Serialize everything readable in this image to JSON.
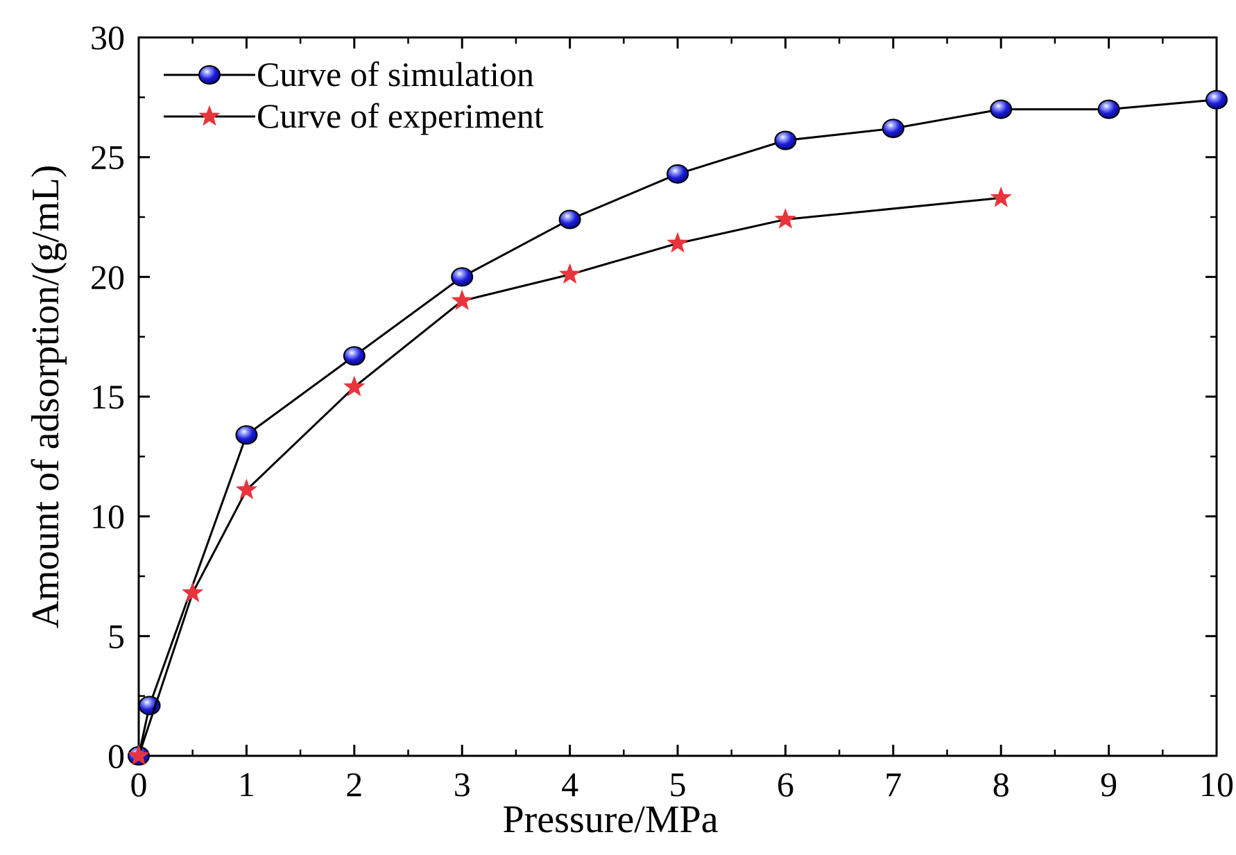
{
  "chart_data": {
    "type": "line",
    "title": "",
    "xlabel": "Pressure/MPa",
    "ylabel": "Amount of adsorption/(g/mL)",
    "xlim": [
      0,
      10
    ],
    "ylim": [
      0,
      30
    ],
    "x_ticks": [
      0,
      1,
      2,
      3,
      4,
      5,
      6,
      7,
      8,
      9,
      10
    ],
    "x_tick_labels": [
      "0",
      "1",
      "2",
      "3",
      "4",
      "5",
      "6",
      "7",
      "8",
      "9",
      "10"
    ],
    "y_ticks": [
      0,
      5,
      10,
      15,
      20,
      25,
      30
    ],
    "y_tick_labels": [
      "0",
      "5",
      "10",
      "15",
      "20",
      "25",
      "30"
    ],
    "x_minor_step": 0.5,
    "y_minor_step": 2.5,
    "grid": false,
    "legend_position": "top-left",
    "series": [
      {
        "name": "Curve of simulation",
        "marker": "sphere",
        "marker_color": "#1a1ad6",
        "line_color": "#000000",
        "x": [
          0,
          0.1,
          1,
          2,
          3,
          4,
          5,
          6,
          7,
          8,
          9,
          10
        ],
        "y": [
          0,
          2.1,
          13.4,
          16.7,
          20.0,
          22.4,
          24.3,
          25.7,
          26.2,
          27.0,
          27.0,
          27.4
        ]
      },
      {
        "name": "Curve of experiment",
        "marker": "star",
        "marker_color": "#e8343c",
        "line_color": "#000000",
        "x": [
          0,
          0.5,
          1,
          2,
          3,
          4,
          5,
          6,
          8
        ],
        "y": [
          0,
          6.8,
          11.1,
          15.4,
          19.0,
          20.1,
          21.4,
          22.4,
          23.3
        ]
      }
    ]
  }
}
